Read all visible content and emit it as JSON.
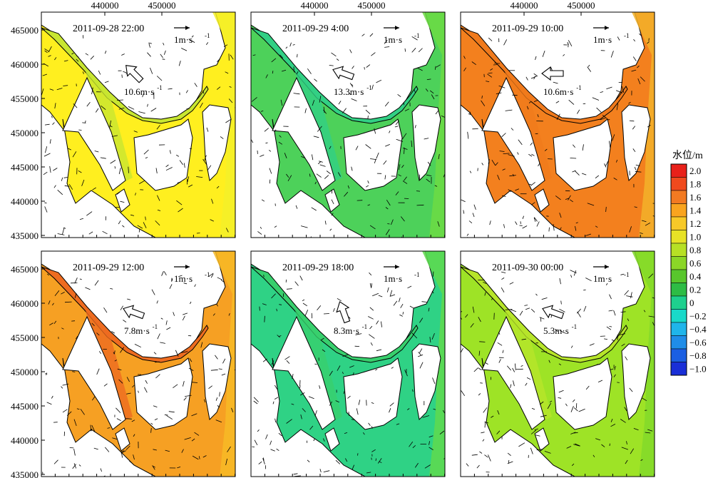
{
  "figure": {
    "x_ticks": [
      "440000",
      "450000"
    ],
    "y_ticks": [
      "465000",
      "460000",
      "455000",
      "450000",
      "445000",
      "440000",
      "435000"
    ],
    "scale_arrow_label": "1m·s",
    "colorbar": {
      "title": "水位/m",
      "ticks": [
        "2.0",
        "1.8",
        "1.6",
        "1.4",
        "1.2",
        "1.0",
        "0.8",
        "0.6",
        "0.4",
        "0.2",
        "0",
        "−0.2",
        "−0.4",
        "−0.6",
        "−0.8",
        "−1.0"
      ],
      "colors": [
        "#e8211a",
        "#f04a1e",
        "#f27a22",
        "#f9a41f",
        "#f7c928",
        "#e7e226",
        "#b7e025",
        "#8bd627",
        "#58c62c",
        "#2dbc45",
        "#1ed08e",
        "#19d9c9",
        "#1fb5ea",
        "#1f8de8",
        "#1b5fe2",
        "#1a2fd7"
      ]
    }
  },
  "chart_data": [
    {
      "type": "heatmap",
      "time": "2011-09-28 22:00",
      "wind_speed": "10.6m·s",
      "wind_dir": "NW",
      "fill": "#ffef1f",
      "fill2": "#c8e631",
      "fill3": "#f4f029"
    },
    {
      "type": "heatmap",
      "time": "2011-09-29 4:00",
      "wind_speed": "13.3m·s",
      "wind_dir": "WNW",
      "fill": "#4dd15a",
      "fill2": "#32d084",
      "fill3": "#6ddc44"
    },
    {
      "type": "heatmap",
      "time": "2011-09-29 10:00",
      "wind_speed": "10.6m·s",
      "wind_dir": "W",
      "fill": "#f3801e",
      "fill2": "#f07a1c",
      "fill3": "#f2b12a"
    },
    {
      "type": "heatmap",
      "time": "2011-09-29 12:00",
      "wind_speed": "7.8m·s",
      "wind_dir": "WNW",
      "fill": "#f6a023",
      "fill2": "#ee6c20",
      "fill3": "#f7ba26"
    },
    {
      "type": "heatmap",
      "time": "2011-09-29 18:00",
      "wind_speed": "8.3m·s",
      "wind_dir": "NNW",
      "fill": "#2fd285",
      "fill2": "#38cf6d",
      "fill3": "#5fdb4d"
    },
    {
      "type": "heatmap",
      "time": "2011-09-30 00:00",
      "wind_speed": "5.3m·s",
      "wind_dir": "WNW",
      "fill": "#9ee326",
      "fill2": "#b7e52a",
      "fill3": "#82d92a"
    }
  ]
}
